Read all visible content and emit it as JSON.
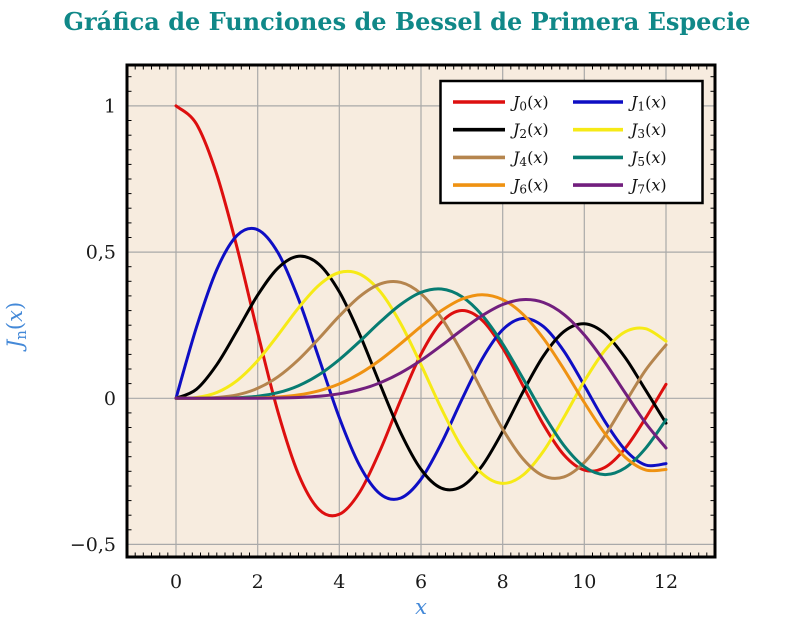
{
  "title": {
    "text": "Gráfica de Funciones de Bessel de Primera Especie",
    "color": "#108888"
  },
  "style": {
    "page_background": "#ffffff",
    "plot_background": "#f7ecdf",
    "grid_color": "#a9a9a9",
    "border_color": "#000000",
    "tick_color": "#1a1a1a",
    "axis_label_color": "#4489d8",
    "legend_background": "#ffffff",
    "legend_border": "#000000"
  },
  "chart_data": {
    "type": "line",
    "title": "Gráfica de Funciones de Bessel de Primera Especie",
    "xlabel": "x",
    "ylabel": "J_n(x)",
    "xlim": [
      -1.2,
      13.2
    ],
    "ylim": [
      -0.543,
      1.14
    ],
    "grid": "major",
    "legend_position": "top-right",
    "x_axis": {
      "tick_values": [
        0,
        2,
        4,
        6,
        8,
        10,
        12
      ],
      "tick_labels": [
        "0",
        "2",
        "4",
        "6",
        "8",
        "10",
        "12"
      ],
      "minor_step": 0.2
    },
    "y_axis": {
      "tick_values": [
        1,
        0.5,
        0,
        -0.5
      ],
      "tick_labels": [
        "1",
        "0,5",
        "0",
        "−0,5"
      ],
      "minor_step": 0.05
    },
    "x": [
      0,
      0.5,
      1,
      1.5,
      2,
      2.5,
      3,
      3.5,
      4,
      4.5,
      5,
      5.5,
      6,
      6.5,
      7,
      7.5,
      8,
      8.5,
      9,
      9.5,
      10,
      10.5,
      11,
      11.5,
      12
    ],
    "series": [
      {
        "label": "J_0(x)",
        "base": "J",
        "sub": "0",
        "arg": "x",
        "color": "#dd0f0f",
        "values": [
          1.0,
          0.9385,
          0.7652,
          0.5118,
          0.2239,
          -0.0484,
          -0.2601,
          -0.3801,
          -0.3971,
          -0.3205,
          -0.1776,
          -0.0068,
          0.1506,
          0.2601,
          0.3001,
          0.2663,
          0.1717,
          0.0419,
          -0.0903,
          -0.1939,
          -0.2459,
          -0.2366,
          -0.1712,
          -0.0677,
          0.0477
        ]
      },
      {
        "label": "J_1(x)",
        "base": "J",
        "sub": "1",
        "arg": "x",
        "color": "#0e0ec4",
        "values": [
          0.0,
          0.2423,
          0.4401,
          0.5579,
          0.5767,
          0.4971,
          0.3391,
          0.1374,
          -0.066,
          -0.2311,
          -0.3276,
          -0.3414,
          -0.2767,
          -0.1538,
          -0.0047,
          0.1352,
          0.2346,
          0.2731,
          0.2453,
          0.1613,
          0.0435,
          -0.0789,
          -0.1768,
          -0.2284,
          -0.2234
        ]
      },
      {
        "label": "J_2(x)",
        "base": "J",
        "sub": "2",
        "arg": "x",
        "color": "#000000",
        "values": [
          0.0,
          0.0306,
          0.1149,
          0.2321,
          0.3528,
          0.4461,
          0.4861,
          0.4586,
          0.3641,
          0.2178,
          0.0466,
          -0.1173,
          -0.2429,
          -0.3074,
          -0.3014,
          -0.2303,
          -0.113,
          0.0223,
          0.1448,
          0.2279,
          0.2546,
          0.2216,
          0.139,
          0.0279,
          -0.0849
        ]
      },
      {
        "label": "J_3(x)",
        "base": "J",
        "sub": "3",
        "arg": "x",
        "color": "#f6ea16",
        "values": [
          0.0,
          0.0026,
          0.0196,
          0.061,
          0.1289,
          0.2166,
          0.3091,
          0.3868,
          0.4302,
          0.4247,
          0.3648,
          0.2561,
          0.1148,
          -0.0353,
          -0.1676,
          -0.2583,
          -0.2911,
          -0.2626,
          -0.1809,
          -0.0653,
          0.0584,
          0.1633,
          0.2273,
          0.2381,
          0.1951
        ]
      },
      {
        "label": "J_4(x)",
        "base": "J",
        "sub": "4",
        "arg": "x",
        "color": "#b5854e",
        "values": [
          0.0,
          0.0002,
          0.0025,
          0.0118,
          0.034,
          0.0738,
          0.132,
          0.2044,
          0.2811,
          0.3484,
          0.3912,
          0.3967,
          0.3576,
          0.2748,
          0.1578,
          0.0238,
          -0.1054,
          -0.2077,
          -0.2655,
          -0.2691,
          -0.2196,
          -0.1283,
          -0.015,
          0.0963,
          0.1825
        ]
      },
      {
        "label": "J_5(x)",
        "base": "J",
        "sub": "5",
        "arg": "x",
        "color": "#077c72",
        "values": [
          0.0,
          0.0,
          0.0002,
          0.0018,
          0.007,
          0.0195,
          0.043,
          0.0804,
          0.1321,
          0.1947,
          0.2611,
          0.3209,
          0.3621,
          0.3736,
          0.3479,
          0.2836,
          0.1858,
          0.0671,
          -0.055,
          -0.1613,
          -0.2341,
          -0.2611,
          -0.2383,
          -0.1711,
          -0.0735
        ]
      },
      {
        "label": "J_6(x)",
        "base": "J",
        "sub": "6",
        "arg": "x",
        "color": "#ef9212",
        "values": [
          0.0,
          0.0,
          0.0,
          0.0002,
          0.0012,
          0.0042,
          0.0114,
          0.0254,
          0.0491,
          0.0843,
          0.131,
          0.1868,
          0.2458,
          0.2999,
          0.3392,
          0.3541,
          0.3376,
          0.2867,
          0.2043,
          0.0993,
          -0.0145,
          -0.1203,
          -0.2016,
          -0.2451,
          -0.2437
        ]
      },
      {
        "label": "J_7(x)",
        "base": "J",
        "sub": "7",
        "arg": "x",
        "color": "#721f7e",
        "values": [
          0.0,
          0.0,
          0.0,
          0.0,
          0.0002,
          0.0008,
          0.0025,
          0.0067,
          0.0152,
          0.03,
          0.0534,
          0.0866,
          0.1296,
          0.1801,
          0.2336,
          0.2832,
          0.3206,
          0.3376,
          0.3275,
          0.2868,
          0.2167,
          0.1236,
          0.0184,
          -0.0846,
          -0.1703
        ]
      }
    ]
  }
}
